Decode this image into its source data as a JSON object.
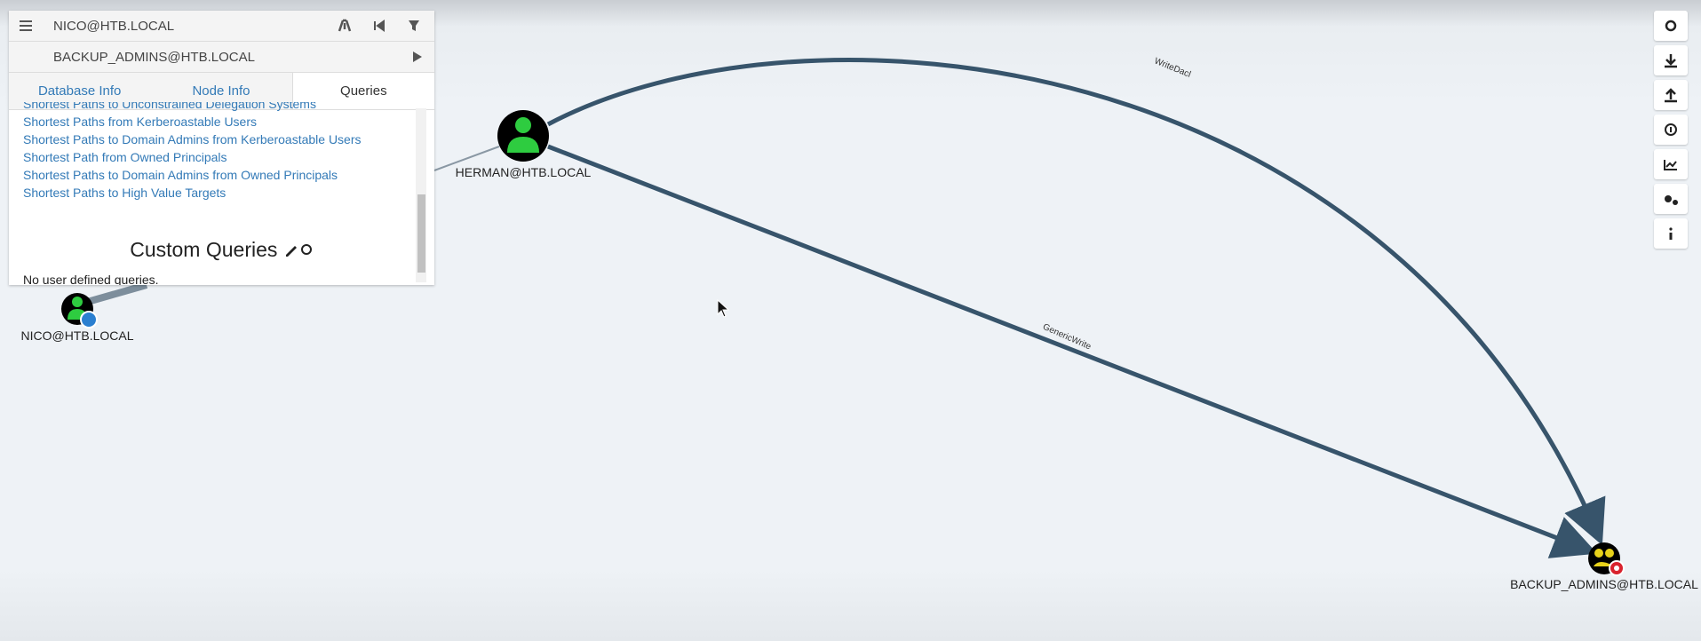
{
  "header": {
    "start_node": "NICO@HTB.LOCAL",
    "target_node": "BACKUP_ADMINS@HTB.LOCAL"
  },
  "tabs": [
    "Database Info",
    "Node Info",
    "Queries"
  ],
  "queries": [
    "Shortest Paths to Unconstrained Delegation Systems",
    "Shortest Paths from Kerberoastable Users",
    "Shortest Paths to Domain Admins from Kerberoastable Users",
    "Shortest Path from Owned Principals",
    "Shortest Paths to Domain Admins from Owned Principals",
    "Shortest Paths to High Value Targets"
  ],
  "custom_queries": {
    "title": "Custom Queries",
    "empty": "No user defined queries."
  },
  "nodes": [
    {
      "label": "HERMAN@HTB.LOCAL"
    },
    {
      "label": "NICO@HTB.LOCAL"
    },
    {
      "label": "BACKUP_ADMINS@HTB.LOCAL"
    }
  ],
  "edges": [
    {
      "label": "WriteDacl"
    },
    {
      "label": "GenericWrite"
    }
  ]
}
